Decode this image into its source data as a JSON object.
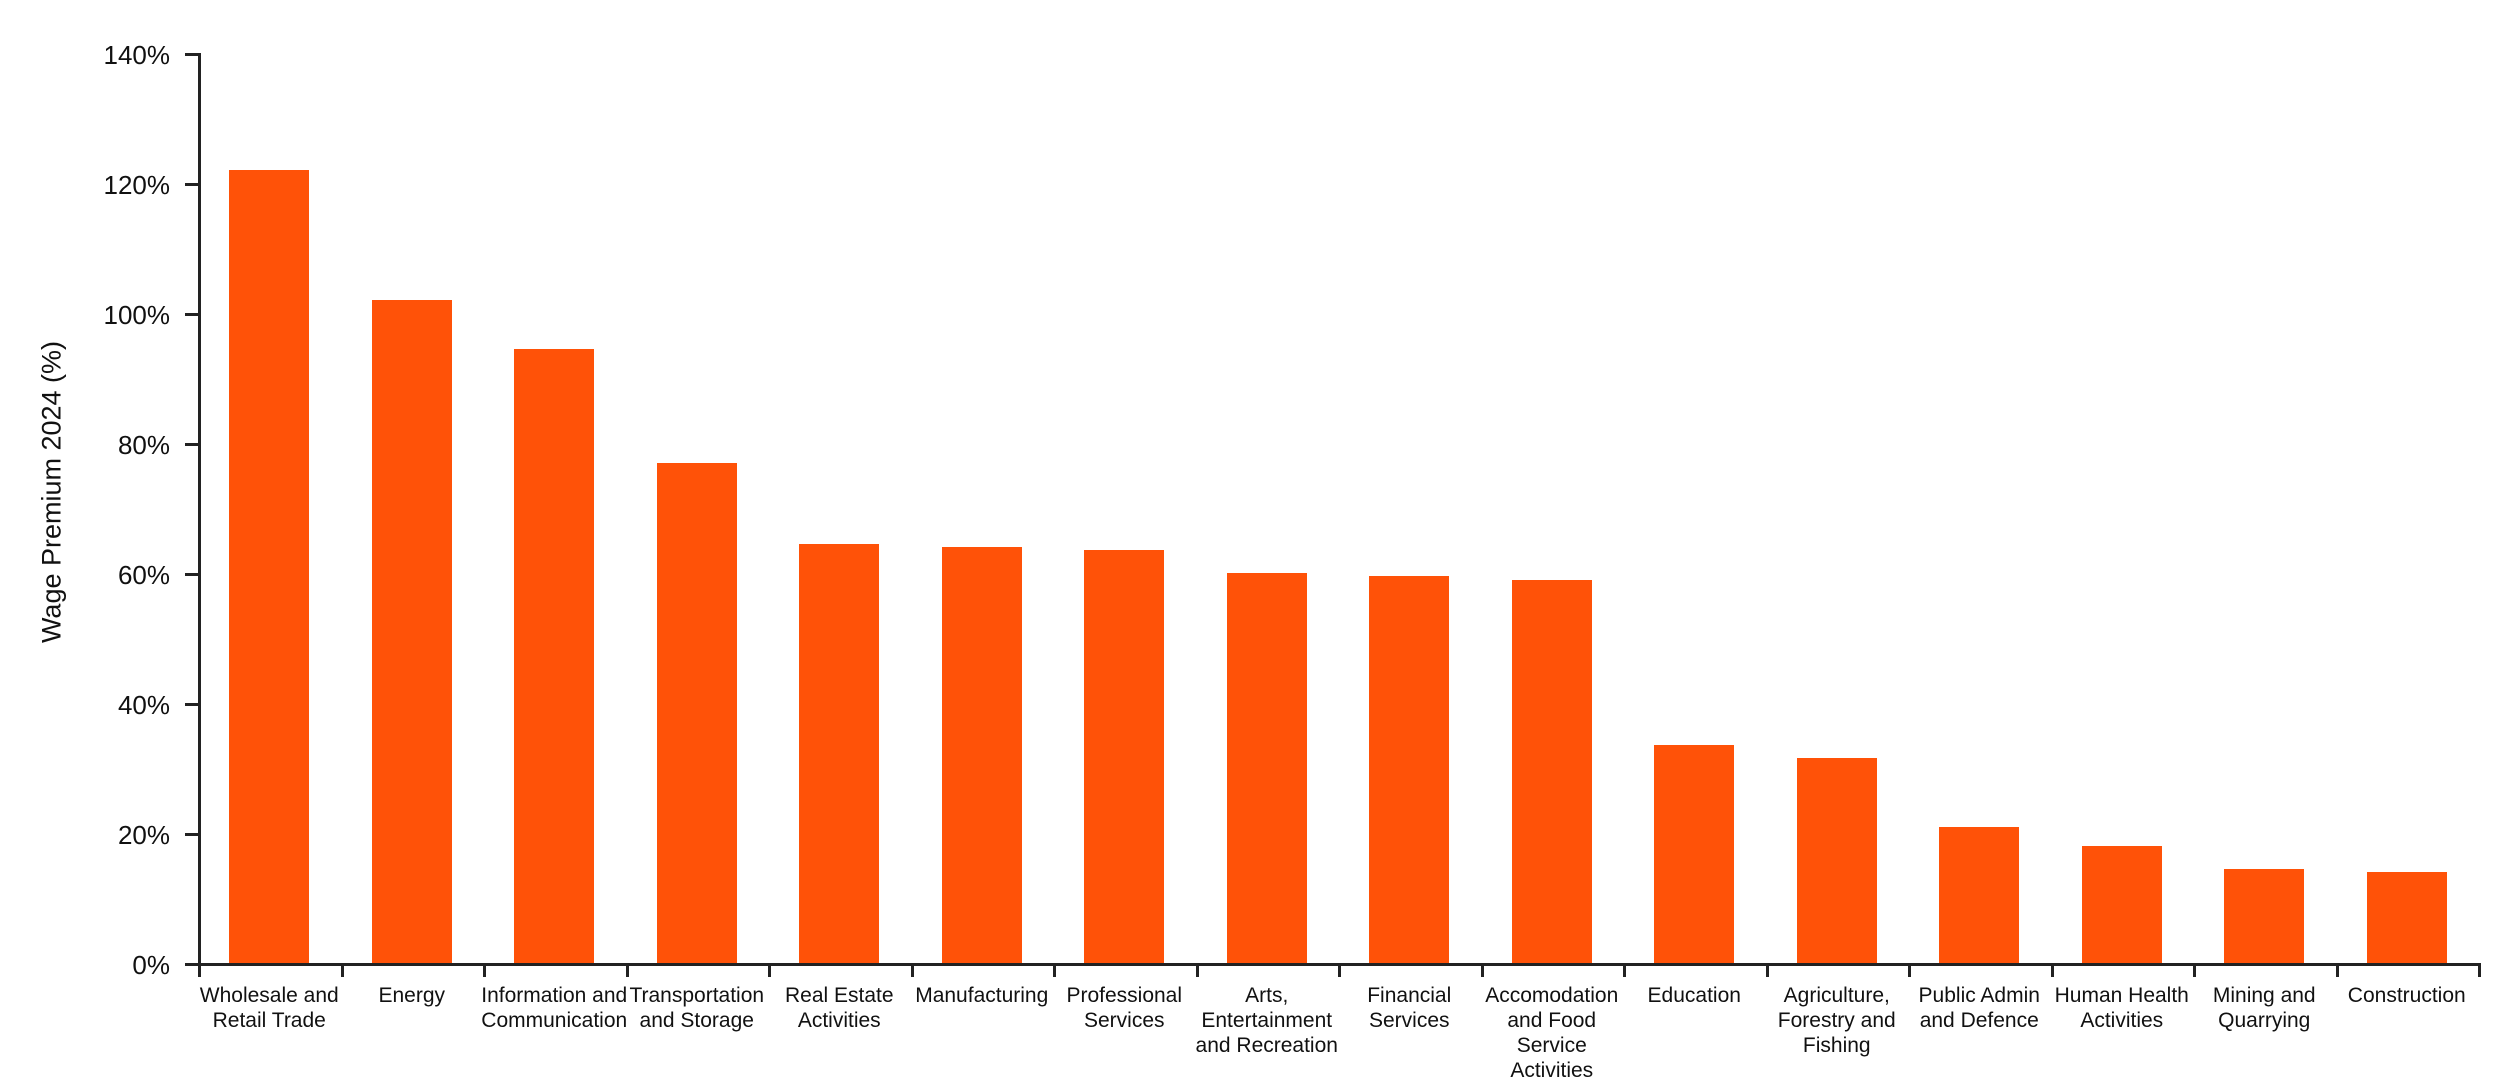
{
  "chart_data": {
    "type": "bar",
    "title": "",
    "ylabel": "Wage Premium 2024 (%)",
    "xlabel": "",
    "ylim": [
      0,
      140
    ],
    "yticks": [
      0,
      20,
      40,
      60,
      80,
      100,
      120,
      140
    ],
    "ytick_labels": [
      "0%",
      "20%",
      "40%",
      "60%",
      "80%",
      "100%",
      "120%",
      "140%"
    ],
    "grid": false,
    "legend_position": "none",
    "bar_color": "#FF5208",
    "axis_color": "#222222",
    "text_color": "#111111",
    "categories": [
      "Wholesale and\nRetail Trade",
      "Energy",
      "Information and\nCommunication",
      "Transportation\nand Storage",
      "Real Estate\nActivities",
      "Manufacturing",
      "Professional\nServices",
      "Arts,\nEntertainment\nand Recreation",
      "Financial\nServices",
      "Accomodation\nand Food\nService\nActivities",
      "Education",
      "Agriculture,\nForestry and\nFishing",
      "Public Admin\nand Defence",
      "Human Health\nActivities",
      "Mining and\nQuarrying",
      "Construction"
    ],
    "values": [
      122,
      102,
      94.5,
      77,
      64.5,
      64,
      63.5,
      60,
      59.5,
      59,
      33.5,
      31.5,
      21,
      18,
      14.5,
      14
    ]
  }
}
